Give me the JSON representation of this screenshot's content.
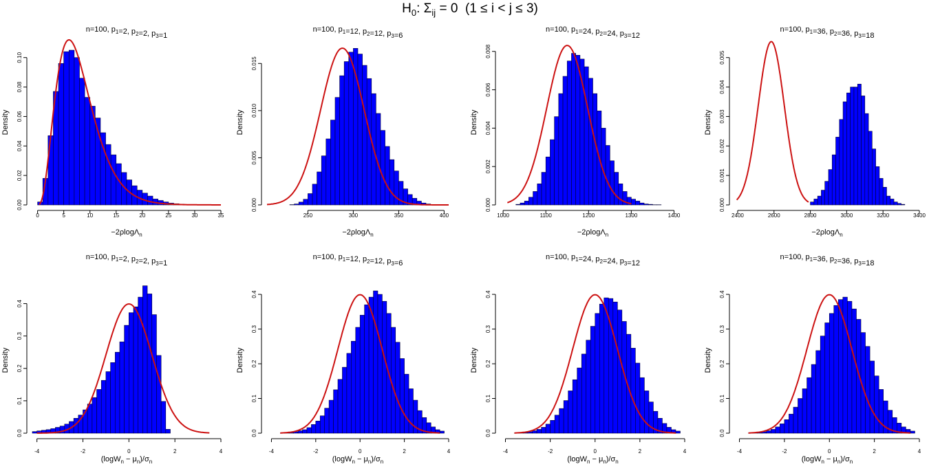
{
  "figure": {
    "title_parts": {
      "h": "H",
      "h_sub": "0",
      "sigma": ": Σ",
      "sigma_sub": "ij",
      "rest": " = 0  (1 ≤ i < j ≤ 3)"
    }
  },
  "colors": {
    "bar_fill": "#0000FF",
    "bar_stroke": "#000033",
    "curve": "#CC1111",
    "axis": "#000000"
  },
  "chart_data": [
    {
      "type": "bar",
      "row": "top",
      "title_parts": [
        "n=100, p",
        "1",
        "=2, p",
        "2",
        "=2, p",
        "3",
        "=1"
      ],
      "ylabel": "Density",
      "xlabel_prefix": "−2ρlogΛ",
      "xlabel_sub": "n",
      "xlim": [
        -1,
        35
      ],
      "ylim": [
        0,
        0.112
      ],
      "xticks": [
        0,
        5,
        10,
        15,
        20,
        25,
        30,
        35
      ],
      "yticks": [
        0.0,
        0.02,
        0.04,
        0.06,
        0.08,
        0.1
      ],
      "ytick_decimals": 2,
      "hist_start": 0,
      "bin_width": 1,
      "density": [
        0.002,
        0.018,
        0.047,
        0.077,
        0.096,
        0.104,
        0.105,
        0.1,
        0.086,
        0.073,
        0.067,
        0.059,
        0.049,
        0.041,
        0.034,
        0.028,
        0.022,
        0.017,
        0.013,
        0.01,
        0.008,
        0.006,
        0.004,
        0.003,
        0.002,
        0.0012,
        0.0008,
        0.0005,
        0.0003,
        0.0002
      ],
      "curve": {
        "kind": "chisq",
        "df": 8,
        "range": [
          0.3,
          35
        ]
      }
    },
    {
      "type": "bar",
      "row": "top",
      "title_parts": [
        "n=100, p",
        "1",
        "=12, p",
        "2",
        "=12, p",
        "3",
        "=6"
      ],
      "ylabel": "Density",
      "xlabel_prefix": "−2ρlogΛ",
      "xlabel_sub": "n",
      "xlim": [
        205,
        405
      ],
      "ylim": [
        0,
        0.0175
      ],
      "xticks": [
        250,
        300,
        350,
        400
      ],
      "yticks": [
        0.0,
        0.005,
        0.01,
        0.015
      ],
      "ytick_decimals": 3,
      "hist_start": 230,
      "bin_width": 5,
      "density": [
        3e-05,
        0.0001,
        0.0003,
        0.0006,
        0.0012,
        0.0022,
        0.0035,
        0.0052,
        0.007,
        0.009,
        0.0114,
        0.0137,
        0.0152,
        0.0162,
        0.0166,
        0.016,
        0.0148,
        0.0134,
        0.0118,
        0.0097,
        0.0079,
        0.0062,
        0.0048,
        0.0036,
        0.0025,
        0.0017,
        0.0011,
        0.0007,
        0.0004,
        0.0002,
        0.0001
      ],
      "curve": {
        "kind": "normal",
        "mean": 288,
        "sd": 24,
        "range": [
          205,
          405
        ]
      }
    },
    {
      "type": "bar",
      "row": "top",
      "title_parts": [
        "n=100, p",
        "1",
        "=24, p",
        "2",
        "=24, p",
        "3",
        "=12"
      ],
      "ylabel": "Density",
      "xlabel_prefix": "−2ρlogΛ",
      "xlabel_sub": "n",
      "xlim": [
        995,
        1425
      ],
      "ylim": [
        0,
        0.0086
      ],
      "xticks": [
        1000,
        1100,
        1200,
        1300,
        1400
      ],
      "yticks": [
        0.0,
        0.002,
        0.004,
        0.006,
        0.008
      ],
      "ytick_decimals": 3,
      "hist_start": 1030,
      "bin_width": 10,
      "density": [
        3e-05,
        0.0001,
        0.0002,
        0.0004,
        0.0007,
        0.0011,
        0.0017,
        0.0025,
        0.0034,
        0.0046,
        0.0058,
        0.0067,
        0.0075,
        0.0079,
        0.0078,
        0.0076,
        0.0072,
        0.0066,
        0.0058,
        0.0049,
        0.004,
        0.0031,
        0.0023,
        0.0017,
        0.0011,
        0.0007,
        0.0004,
        0.0003,
        0.0002,
        0.0001,
        5e-05,
        3e-05,
        1e-05,
        1e-05
      ],
      "curve": {
        "kind": "normal",
        "mean": 1150,
        "sd": 48,
        "range": [
          1010,
          1300
        ]
      }
    },
    {
      "type": "bar",
      "row": "top",
      "title_parts": [
        "n=100, p",
        "1",
        "=36, p",
        "2",
        "=36, p",
        "3",
        "=18"
      ],
      "ylabel": "Density",
      "xlabel_prefix": "−2ρlogΛ",
      "xlabel_sub": "n",
      "xlim": [
        2385,
        3400
      ],
      "ylim": [
        0,
        0.0056
      ],
      "xticks": [
        2400,
        2600,
        2800,
        3000,
        3200,
        3400
      ],
      "yticks": [
        0.0,
        0.001,
        0.002,
        0.003,
        0.004,
        0.005
      ],
      "ytick_decimals": 3,
      "hist_start": 2800,
      "bin_width": 20,
      "density": [
        0.0001,
        0.0002,
        0.0003,
        0.0005,
        0.0008,
        0.0012,
        0.0017,
        0.0023,
        0.0029,
        0.0035,
        0.0038,
        0.004,
        0.004,
        0.0041,
        0.0037,
        0.0031,
        0.0025,
        0.0019,
        0.0013,
        0.0009,
        0.0006,
        0.0003,
        0.0002,
        0.0001,
        5e-05,
        2e-05
      ],
      "curve": {
        "kind": "normal",
        "mean": 2585,
        "sd": 72,
        "range": [
          2395,
          2790
        ]
      }
    },
    {
      "type": "bar",
      "row": "bottom",
      "title_parts": [
        "n=100, p",
        "1",
        "=2, p",
        "2",
        "=2, p",
        "3",
        "=1"
      ],
      "ylabel": "Density",
      "xlabel_prefix": "(logW",
      "xlabel_sub": "n",
      "xlabel_mid": " − μ",
      "xlabel_sub2": "n",
      "xlabel_mid2": ")/σ",
      "xlabel_sub3": "n",
      "xlim": [
        -4.2,
        4
      ],
      "ylim": [
        0,
        0.45
      ],
      "xticks": [
        -4,
        -2,
        0,
        2,
        4
      ],
      "yticks": [
        0.0,
        0.1,
        0.2,
        0.3,
        0.4
      ],
      "ytick_decimals": 1,
      "hist_start": -4.2,
      "bin_width": 0.2,
      "density": [
        0.005,
        0.007,
        0.009,
        0.011,
        0.014,
        0.018,
        0.022,
        0.028,
        0.036,
        0.046,
        0.056,
        0.072,
        0.09,
        0.11,
        0.135,
        0.163,
        0.19,
        0.218,
        0.25,
        0.282,
        0.333,
        0.372,
        0.39,
        0.42,
        0.455,
        0.43,
        0.366,
        0.24,
        0.098,
        0.012
      ],
      "curve": {
        "kind": "normal",
        "mean": 0,
        "sd": 1,
        "range": [
          -4,
          3.5
        ]
      }
    },
    {
      "type": "bar",
      "row": "bottom",
      "title_parts": [
        "n=100, p",
        "1",
        "=12, p",
        "2",
        "=12, p",
        "3",
        "=6"
      ],
      "ylabel": "Density",
      "xlabel_prefix": "(logW",
      "xlabel_sub": "n",
      "xlabel_mid": " − μ",
      "xlabel_sub2": "n",
      "xlabel_mid2": ")/σ",
      "xlabel_sub3": "n",
      "xlim": [
        -4.2,
        4
      ],
      "ylim": [
        0,
        0.42
      ],
      "xticks": [
        -4,
        -2,
        0,
        2,
        4
      ],
      "yticks": [
        0.0,
        0.1,
        0.2,
        0.3,
        0.4
      ],
      "ytick_decimals": 1,
      "hist_start": -3.6,
      "bin_width": 0.2,
      "density": [
        0.0005,
        0.001,
        0.002,
        0.004,
        0.007,
        0.01,
        0.016,
        0.025,
        0.035,
        0.05,
        0.072,
        0.095,
        0.125,
        0.155,
        0.19,
        0.23,
        0.265,
        0.305,
        0.34,
        0.37,
        0.392,
        0.41,
        0.4,
        0.38,
        0.345,
        0.305,
        0.262,
        0.215,
        0.17,
        0.128,
        0.095,
        0.065,
        0.045,
        0.03,
        0.018,
        0.01,
        0.006
      ],
      "curve": {
        "kind": "normal",
        "mean": 0,
        "sd": 1,
        "range": [
          -3.6,
          3.6
        ]
      }
    },
    {
      "type": "bar",
      "row": "bottom",
      "title_parts": [
        "n=100, p",
        "1",
        "=24, p",
        "2",
        "=24, p",
        "3",
        "=12"
      ],
      "ylabel": "Density",
      "xlabel_prefix": "(logW",
      "xlabel_sub": "n",
      "xlabel_mid": " − μ",
      "xlabel_sub2": "n",
      "xlabel_mid2": ")/σ",
      "xlabel_sub3": "n",
      "xlim": [
        -4.2,
        4
      ],
      "ylim": [
        0,
        0.42
      ],
      "xticks": [
        -4,
        -2,
        0,
        2,
        4
      ],
      "yticks": [
        0.0,
        0.1,
        0.2,
        0.3,
        0.4
      ],
      "ytick_decimals": 1,
      "hist_start": -3.6,
      "bin_width": 0.2,
      "density": [
        0.0005,
        0.001,
        0.002,
        0.004,
        0.007,
        0.011,
        0.017,
        0.026,
        0.037,
        0.052,
        0.071,
        0.094,
        0.122,
        0.154,
        0.188,
        0.228,
        0.268,
        0.308,
        0.345,
        0.372,
        0.39,
        0.388,
        0.378,
        0.355,
        0.322,
        0.285,
        0.245,
        0.202,
        0.16,
        0.122,
        0.09,
        0.063,
        0.043,
        0.028,
        0.017,
        0.01,
        0.006
      ],
      "curve": {
        "kind": "normal",
        "mean": 0,
        "sd": 1,
        "range": [
          -3.6,
          3.6
        ]
      }
    },
    {
      "type": "bar",
      "row": "bottom",
      "title_parts": [
        "n=100, p",
        "1",
        "=36, p",
        "2",
        "=36, p",
        "3",
        "=18"
      ],
      "ylabel": "Density",
      "xlabel_prefix": "(logW",
      "xlabel_sub": "n",
      "xlabel_mid": " − μ",
      "xlabel_sub2": "n",
      "xlabel_mid2": ")/σ",
      "xlabel_sub3": "n",
      "xlim": [
        -4.2,
        4
      ],
      "ylim": [
        0,
        0.42
      ],
      "xticks": [
        -4,
        -2,
        0,
        2,
        4
      ],
      "yticks": [
        0.0,
        0.1,
        0.2,
        0.3,
        0.4
      ],
      "ytick_decimals": 1,
      "hist_start": -3.6,
      "bin_width": 0.2,
      "density": [
        0.0005,
        0.001,
        0.002,
        0.004,
        0.007,
        0.011,
        0.018,
        0.027,
        0.039,
        0.055,
        0.075,
        0.1,
        0.128,
        0.16,
        0.198,
        0.238,
        0.28,
        0.318,
        0.345,
        0.368,
        0.385,
        0.392,
        0.38,
        0.358,
        0.328,
        0.29,
        0.25,
        0.208,
        0.165,
        0.126,
        0.093,
        0.066,
        0.045,
        0.029,
        0.018,
        0.011,
        0.006
      ],
      "curve": {
        "kind": "normal",
        "mean": 0,
        "sd": 1,
        "range": [
          -3.6,
          3.6
        ]
      }
    }
  ]
}
